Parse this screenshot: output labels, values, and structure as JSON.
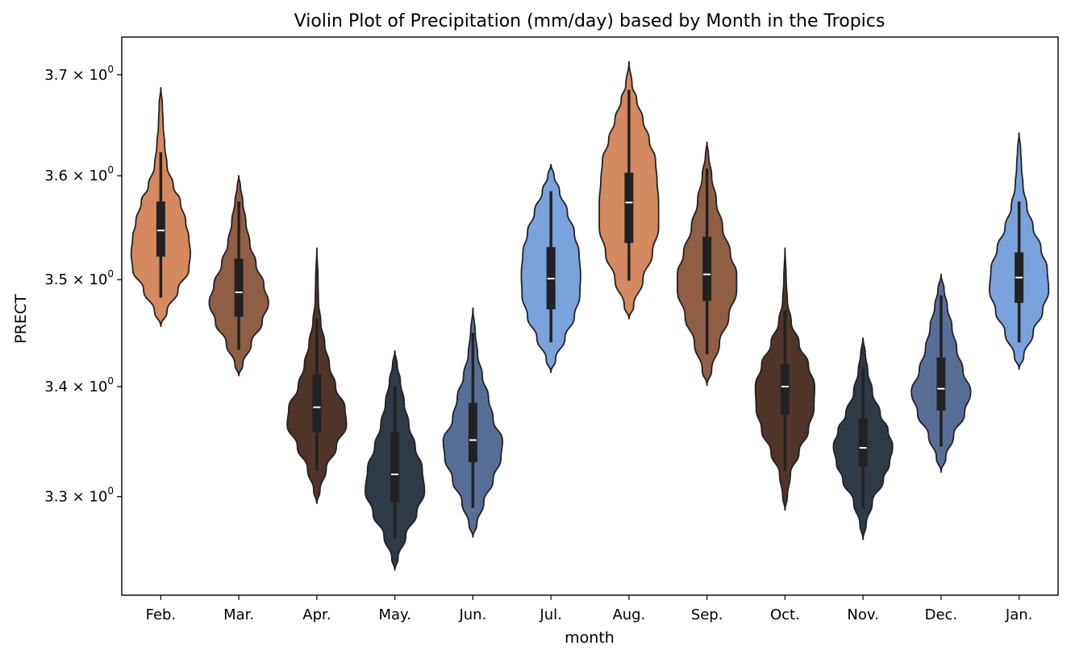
{
  "chart_data": {
    "type": "violin",
    "title": "Violin Plot of Precipitation (mm/day) based by Month in the Tropics",
    "xlabel": "month",
    "ylabel": "PRECT",
    "yscale": "log",
    "ylim": [
      3.213,
      3.738
    ],
    "yticks": [
      {
        "value": 3.3,
        "mantissa": "3.3",
        "sep": " × ",
        "base": "10",
        "exp": "0"
      },
      {
        "value": 3.4,
        "mantissa": "3.4",
        "sep": " × ",
        "base": "10",
        "exp": "0"
      },
      {
        "value": 3.5,
        "mantissa": "3.5",
        "sep": " × ",
        "base": "10",
        "exp": "0"
      },
      {
        "value": 3.6,
        "mantissa": "3.6",
        "sep": " × ",
        "base": "10",
        "exp": "0"
      },
      {
        "value": 3.7,
        "mantissa": "3.7",
        "sep": " × ",
        "base": "10",
        "exp": "0"
      }
    ],
    "grid": false,
    "legend": "none",
    "categories": [
      "Feb.",
      "Mar.",
      "Apr.",
      "May.",
      "Jun.",
      "Jul.",
      "Aug.",
      "Sep.",
      "Oct.",
      "Nov.",
      "Dec.",
      "Jan."
    ],
    "violins": [
      {
        "category": "Feb.",
        "color": "#d4895e",
        "min": 3.456,
        "max": 3.687,
        "whisker_low": 3.483,
        "whisker_high": 3.623,
        "q1": 3.522,
        "median": 3.547,
        "q3": 3.575,
        "profile": [
          [
            3.456,
            0.0
          ],
          [
            3.47,
            0.08
          ],
          [
            3.49,
            0.22
          ],
          [
            3.51,
            0.36
          ],
          [
            3.525,
            0.38
          ],
          [
            3.54,
            0.36
          ],
          [
            3.555,
            0.32
          ],
          [
            3.575,
            0.25
          ],
          [
            3.59,
            0.16
          ],
          [
            3.61,
            0.08
          ],
          [
            3.63,
            0.05
          ],
          [
            3.65,
            0.03
          ],
          [
            3.67,
            0.02
          ],
          [
            3.687,
            0.0
          ]
        ]
      },
      {
        "category": "Mar.",
        "color": "#8f5e44",
        "min": 3.41,
        "max": 3.6,
        "whisker_low": 3.434,
        "whisker_high": 3.575,
        "q1": 3.465,
        "median": 3.488,
        "q3": 3.52,
        "profile": [
          [
            3.41,
            0.0
          ],
          [
            3.42,
            0.05
          ],
          [
            3.44,
            0.16
          ],
          [
            3.46,
            0.3
          ],
          [
            3.478,
            0.38
          ],
          [
            3.495,
            0.32
          ],
          [
            3.515,
            0.22
          ],
          [
            3.535,
            0.14
          ],
          [
            3.555,
            0.09
          ],
          [
            3.575,
            0.05
          ],
          [
            3.59,
            0.02
          ],
          [
            3.6,
            0.0
          ]
        ]
      },
      {
        "category": "Apr.",
        "color": "#4f352a",
        "min": 3.294,
        "max": 3.53,
        "whisker_low": 3.323,
        "whisker_high": 3.463,
        "q1": 3.358,
        "median": 3.381,
        "q3": 3.411,
        "profile": [
          [
            3.294,
            0.0
          ],
          [
            3.305,
            0.04
          ],
          [
            3.325,
            0.12
          ],
          [
            3.345,
            0.25
          ],
          [
            3.365,
            0.38
          ],
          [
            3.38,
            0.36
          ],
          [
            3.4,
            0.24
          ],
          [
            3.42,
            0.16
          ],
          [
            3.44,
            0.1
          ],
          [
            3.46,
            0.05
          ],
          [
            3.48,
            0.02
          ],
          [
            3.5,
            0.015
          ],
          [
            3.53,
            0.0
          ]
        ]
      },
      {
        "category": "May.",
        "color": "#2f3a47",
        "min": 3.235,
        "max": 3.433,
        "whisker_low": 3.263,
        "whisker_high": 3.4,
        "q1": 3.295,
        "median": 3.32,
        "q3": 3.358,
        "profile": [
          [
            3.235,
            0.0
          ],
          [
            3.245,
            0.04
          ],
          [
            3.265,
            0.14
          ],
          [
            3.285,
            0.28
          ],
          [
            3.305,
            0.38
          ],
          [
            3.325,
            0.35
          ],
          [
            3.345,
            0.26
          ],
          [
            3.365,
            0.18
          ],
          [
            3.385,
            0.12
          ],
          [
            3.405,
            0.07
          ],
          [
            3.42,
            0.03
          ],
          [
            3.433,
            0.0
          ]
        ]
      },
      {
        "category": "Jun.",
        "color": "#596e97",
        "min": 3.264,
        "max": 3.473,
        "whisker_low": 3.29,
        "whisker_high": 3.45,
        "q1": 3.331,
        "median": 3.351,
        "q3": 3.385,
        "profile": [
          [
            3.264,
            0.0
          ],
          [
            3.275,
            0.05
          ],
          [
            3.295,
            0.14
          ],
          [
            3.315,
            0.26
          ],
          [
            3.335,
            0.36
          ],
          [
            3.35,
            0.38
          ],
          [
            3.37,
            0.26
          ],
          [
            3.39,
            0.2
          ],
          [
            3.41,
            0.12
          ],
          [
            3.43,
            0.06
          ],
          [
            3.45,
            0.03
          ],
          [
            3.473,
            0.0
          ]
        ]
      },
      {
        "category": "Jul.",
        "color": "#7aa2dc",
        "min": 3.413,
        "max": 3.611,
        "whisker_low": 3.441,
        "whisker_high": 3.585,
        "q1": 3.472,
        "median": 3.501,
        "q3": 3.531,
        "profile": [
          [
            3.413,
            0.0
          ],
          [
            3.425,
            0.06
          ],
          [
            3.445,
            0.18
          ],
          [
            3.465,
            0.3
          ],
          [
            3.485,
            0.37
          ],
          [
            3.505,
            0.38
          ],
          [
            3.525,
            0.36
          ],
          [
            3.545,
            0.3
          ],
          [
            3.565,
            0.21
          ],
          [
            3.585,
            0.11
          ],
          [
            3.6,
            0.04
          ],
          [
            3.611,
            0.0
          ]
        ]
      },
      {
        "category": "Aug.",
        "color": "#d4895e",
        "min": 3.463,
        "max": 3.713,
        "whisker_low": 3.499,
        "whisker_high": 3.685,
        "q1": 3.535,
        "median": 3.574,
        "q3": 3.603,
        "profile": [
          [
            3.463,
            0.0
          ],
          [
            3.475,
            0.06
          ],
          [
            3.5,
            0.18
          ],
          [
            3.525,
            0.3
          ],
          [
            3.55,
            0.38
          ],
          [
            3.575,
            0.38
          ],
          [
            3.595,
            0.36
          ],
          [
            3.615,
            0.34
          ],
          [
            3.635,
            0.26
          ],
          [
            3.655,
            0.18
          ],
          [
            3.675,
            0.1
          ],
          [
            3.69,
            0.04
          ],
          [
            3.713,
            0.0
          ]
        ]
      },
      {
        "category": "Sep.",
        "color": "#8f5e44",
        "min": 3.401,
        "max": 3.633,
        "whisker_low": 3.43,
        "whisker_high": 3.607,
        "q1": 3.48,
        "median": 3.505,
        "q3": 3.541,
        "profile": [
          [
            3.401,
            0.0
          ],
          [
            3.415,
            0.06
          ],
          [
            3.44,
            0.16
          ],
          [
            3.465,
            0.28
          ],
          [
            3.49,
            0.38
          ],
          [
            3.505,
            0.38
          ],
          [
            3.525,
            0.3
          ],
          [
            3.55,
            0.2
          ],
          [
            3.575,
            0.12
          ],
          [
            3.6,
            0.06
          ],
          [
            3.62,
            0.02
          ],
          [
            3.633,
            0.0
          ]
        ]
      },
      {
        "category": "Oct.",
        "color": "#4f352a",
        "min": 3.288,
        "max": 3.53,
        "whisker_low": 3.323,
        "whisker_high": 3.471,
        "q1": 3.374,
        "median": 3.4,
        "q3": 3.421,
        "profile": [
          [
            3.288,
            0.0
          ],
          [
            3.3,
            0.03
          ],
          [
            3.32,
            0.07
          ],
          [
            3.34,
            0.18
          ],
          [
            3.36,
            0.3
          ],
          [
            3.38,
            0.37
          ],
          [
            3.4,
            0.38
          ],
          [
            3.42,
            0.3
          ],
          [
            3.44,
            0.18
          ],
          [
            3.46,
            0.08
          ],
          [
            3.48,
            0.03
          ],
          [
            3.5,
            0.015
          ],
          [
            3.53,
            0.0
          ]
        ]
      },
      {
        "category": "Nov.",
        "color": "#2f3a47",
        "min": 3.262,
        "max": 3.445,
        "whisker_low": 3.29,
        "whisker_high": 3.418,
        "q1": 3.327,
        "median": 3.344,
        "q3": 3.371,
        "profile": [
          [
            3.262,
            0.0
          ],
          [
            3.275,
            0.04
          ],
          [
            3.295,
            0.12
          ],
          [
            3.315,
            0.26
          ],
          [
            3.33,
            0.34
          ],
          [
            3.345,
            0.38
          ],
          [
            3.36,
            0.32
          ],
          [
            3.375,
            0.22
          ],
          [
            3.395,
            0.12
          ],
          [
            3.415,
            0.06
          ],
          [
            3.43,
            0.03
          ],
          [
            3.445,
            0.0
          ]
        ]
      },
      {
        "category": "Dec.",
        "color": "#596e97",
        "min": 3.322,
        "max": 3.505,
        "whisker_low": 3.345,
        "whisker_high": 3.485,
        "q1": 3.378,
        "median": 3.398,
        "q3": 3.427,
        "profile": [
          [
            3.322,
            0.0
          ],
          [
            3.335,
            0.06
          ],
          [
            3.355,
            0.16
          ],
          [
            3.375,
            0.3
          ],
          [
            3.395,
            0.38
          ],
          [
            3.415,
            0.28
          ],
          [
            3.435,
            0.2
          ],
          [
            3.455,
            0.14
          ],
          [
            3.475,
            0.08
          ],
          [
            3.49,
            0.04
          ],
          [
            3.505,
            0.0
          ]
        ]
      },
      {
        "category": "Jan.",
        "color": "#7aa2dc",
        "min": 3.416,
        "max": 3.642,
        "whisker_low": 3.441,
        "whisker_high": 3.575,
        "q1": 3.478,
        "median": 3.502,
        "q3": 3.526,
        "profile": [
          [
            3.416,
            0.0
          ],
          [
            3.428,
            0.06
          ],
          [
            3.45,
            0.18
          ],
          [
            3.47,
            0.3
          ],
          [
            3.49,
            0.38
          ],
          [
            3.51,
            0.36
          ],
          [
            3.53,
            0.28
          ],
          [
            3.55,
            0.18
          ],
          [
            3.57,
            0.1
          ],
          [
            3.59,
            0.05
          ],
          [
            3.61,
            0.03
          ],
          [
            3.625,
            0.02
          ],
          [
            3.642,
            0.0
          ]
        ]
      }
    ]
  }
}
